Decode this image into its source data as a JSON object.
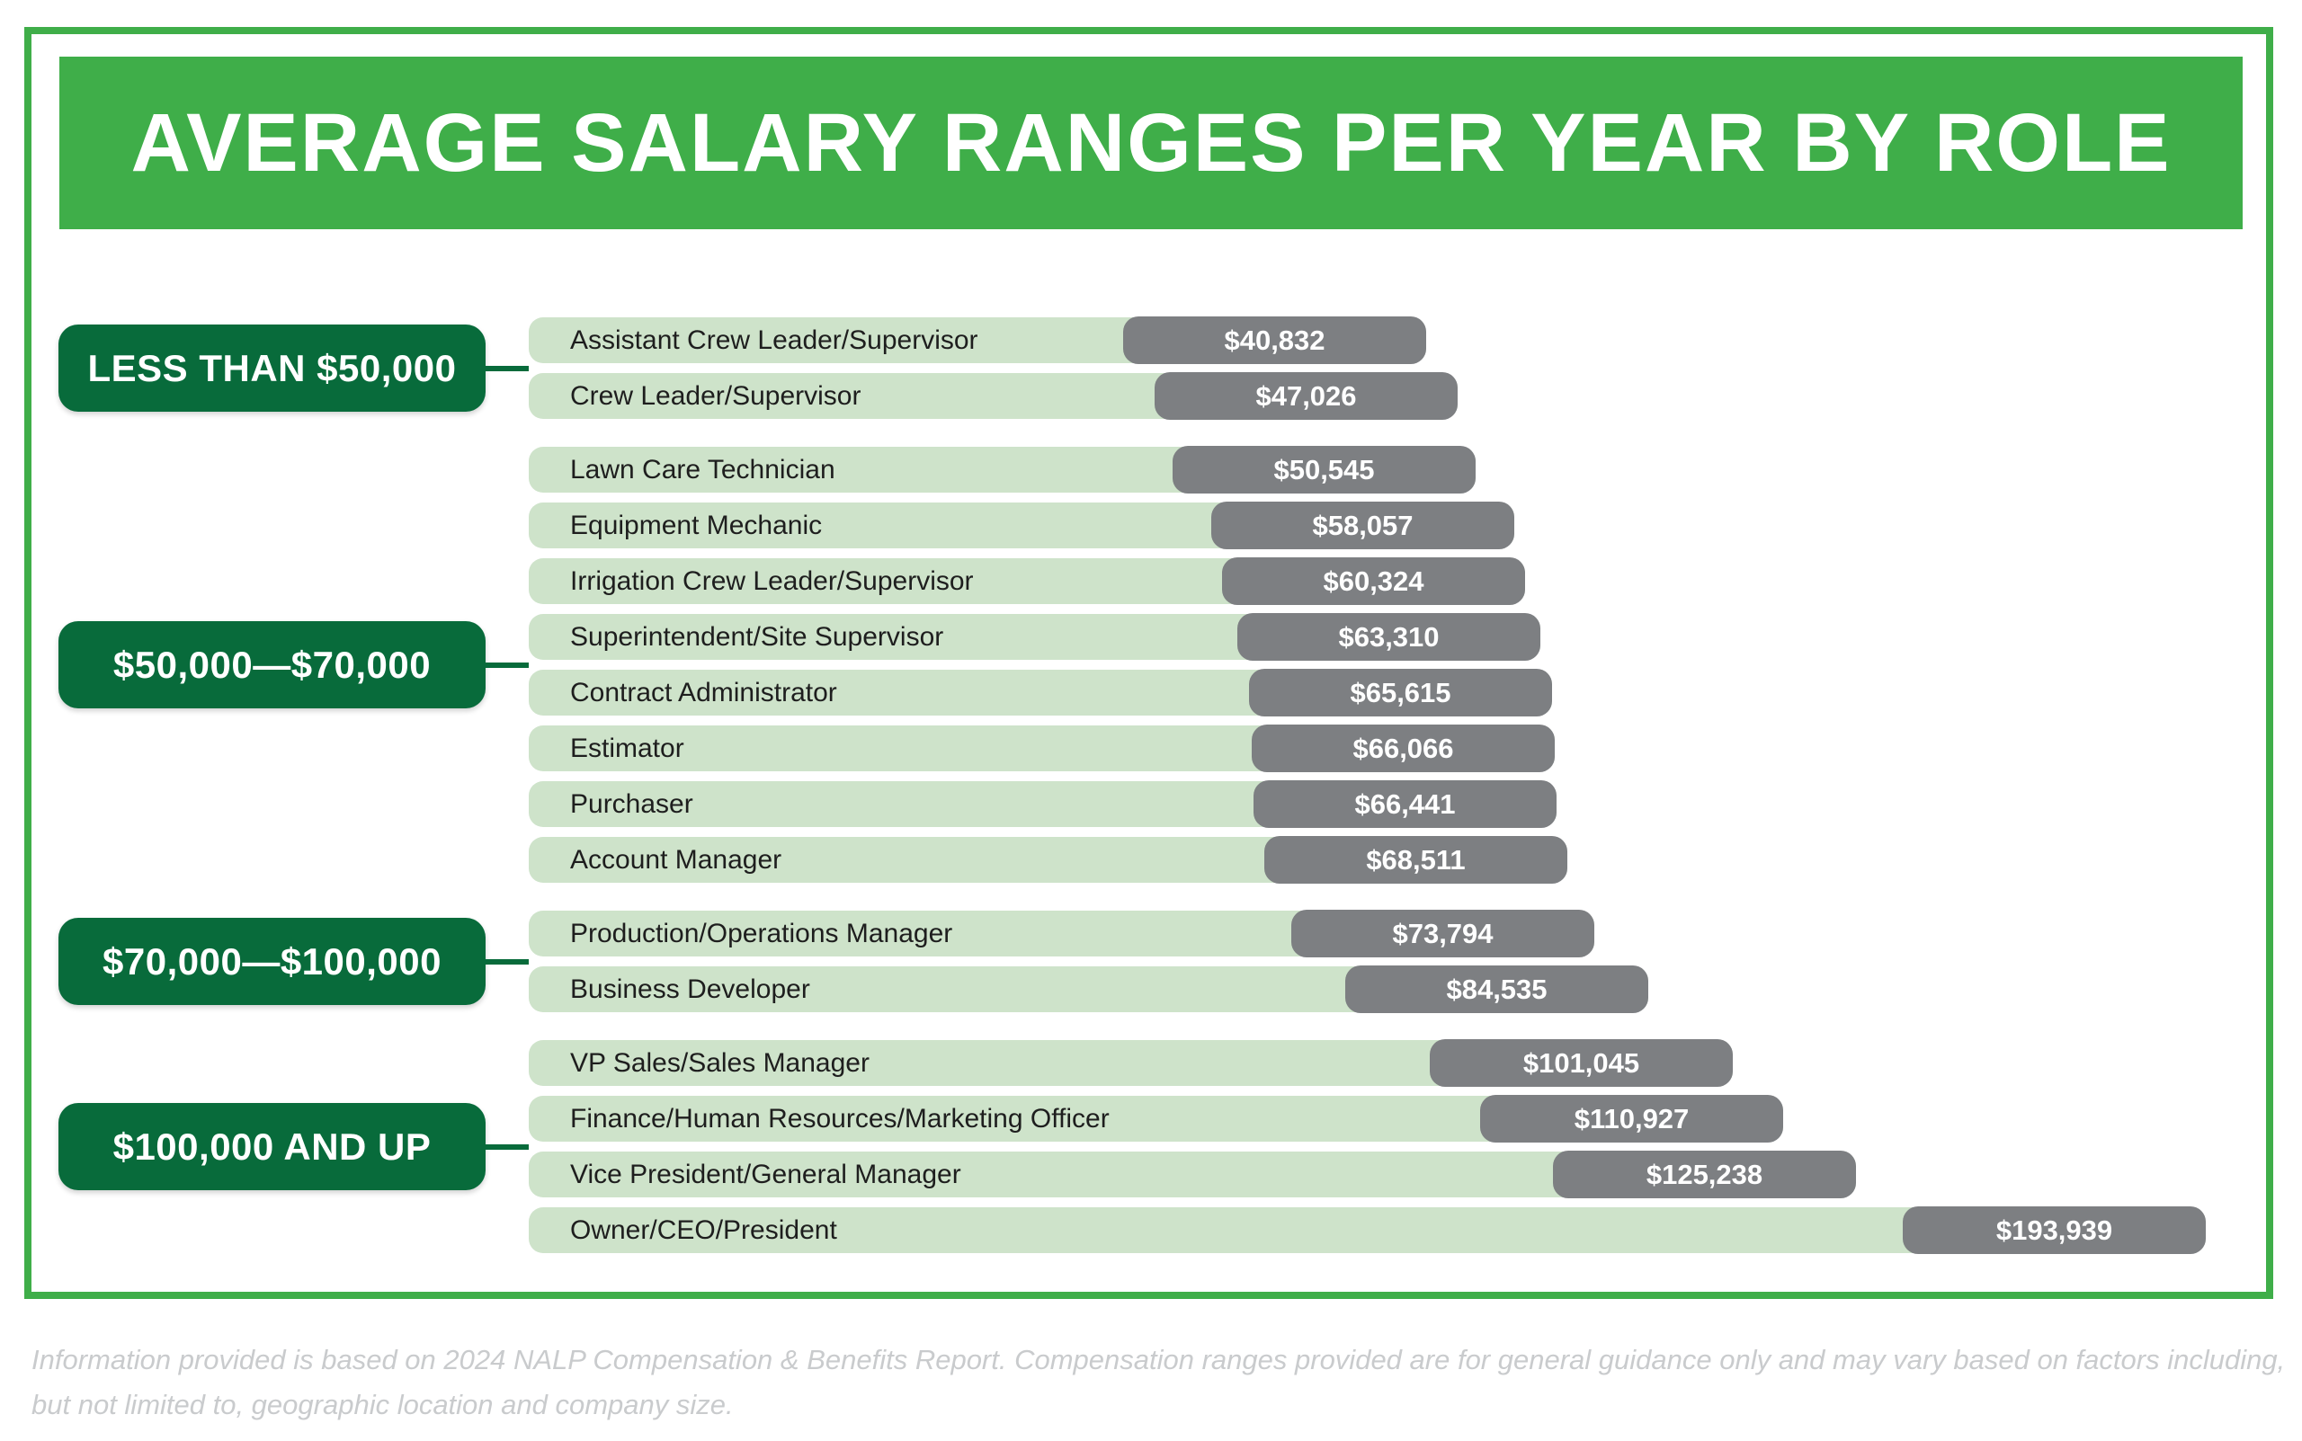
{
  "title": "AVERAGE SALARY RANGES PER YEAR BY ROLE",
  "footnote": "Information provided is based on 2024 NALP Compensation & Benefits Report. Compensation ranges provided are for general guidance only and may vary based on factors including, but not limited to, geographic location and company size.",
  "colors": {
    "frame_green": "#3FAE49",
    "banner_green": "#3FAE49",
    "range_label_green": "#086B3B",
    "bar_light_green": "#CEE3CA",
    "pill_gray": "#7D7F82",
    "role_text": "#1E1E1E",
    "footnote_gray": "#C9CBCD",
    "background": "#FFFFFF"
  },
  "chart_data": {
    "type": "bar",
    "orientation": "horizontal",
    "title": "AVERAGE SALARY RANGES PER YEAR BY ROLE",
    "xlabel": "",
    "ylabel": "",
    "value_unit": "USD per year",
    "value_range_shown": [
      40832,
      193939
    ],
    "legend": "none",
    "grid": false,
    "groups": [
      {
        "range_label": "LESS THAN $50,000",
        "roles": [
          {
            "label": "Assistant Crew Leader/Supervisor",
            "value": 40832,
            "value_label": "$40,832"
          },
          {
            "label": "Crew Leader/Supervisor",
            "value": 47026,
            "value_label": "$47,026"
          }
        ]
      },
      {
        "range_label": "$50,000—$70,000",
        "roles": [
          {
            "label": "Lawn Care Technician",
            "value": 50545,
            "value_label": "$50,545"
          },
          {
            "label": "Equipment Mechanic",
            "value": 58057,
            "value_label": "$58,057"
          },
          {
            "label": "Irrigation Crew Leader/Supervisor",
            "value": 60324,
            "value_label": "$60,324"
          },
          {
            "label": "Superintendent/Site Supervisor",
            "value": 63310,
            "value_label": "$63,310"
          },
          {
            "label": "Contract Administrator",
            "value": 65615,
            "value_label": "$65,615"
          },
          {
            "label": "Estimator",
            "value": 66066,
            "value_label": "$66,066"
          },
          {
            "label": "Purchaser",
            "value": 66441,
            "value_label": "$66,441"
          },
          {
            "label": "Account Manager",
            "value": 68511,
            "value_label": "$68,511"
          }
        ]
      },
      {
        "range_label": "$70,000—$100,000",
        "roles": [
          {
            "label": "Production/Operations Manager",
            "value": 73794,
            "value_label": "$73,794"
          },
          {
            "label": "Business Developer",
            "value": 84535,
            "value_label": "$84,535"
          }
        ]
      },
      {
        "range_label": "$100,000 AND UP",
        "roles": [
          {
            "label": "VP Sales/Sales Manager",
            "value": 101045,
            "value_label": "$101,045"
          },
          {
            "label": "Finance/Human Resources/Marketing Officer",
            "value": 110927,
            "value_label": "$110,927"
          },
          {
            "label": "Vice President/General Manager",
            "value": 125238,
            "value_label": "$125,238"
          },
          {
            "label": "Owner/CEO/President",
            "value": 193939,
            "value_label": "$193,939"
          }
        ]
      }
    ]
  }
}
